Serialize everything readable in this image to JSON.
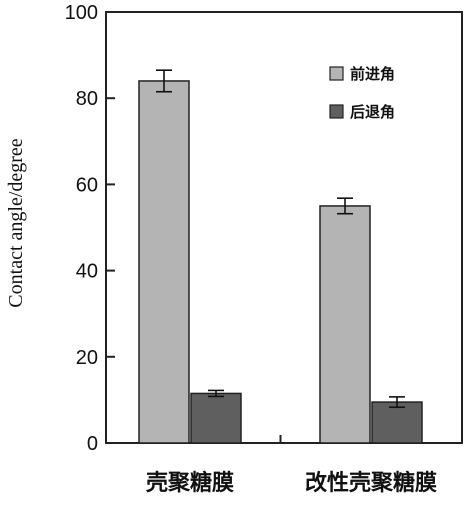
{
  "chart_data": {
    "type": "bar",
    "title": "",
    "xlabel": "",
    "ylabel": "Contact angle/degree",
    "ylim": [
      0,
      100
    ],
    "yticks": [
      0,
      20,
      40,
      60,
      80,
      100
    ],
    "categories": [
      "壳聚糖膜",
      "改性壳聚糖膜"
    ],
    "series": [
      {
        "name": "前进角",
        "color": "#b4b4b4",
        "values": [
          84,
          55
        ],
        "errors": [
          2.5,
          1.8
        ]
      },
      {
        "name": "后退角",
        "color": "#5f5f5f",
        "values": [
          11.5,
          9.5
        ],
        "errors": [
          0.7,
          1.2
        ]
      }
    ],
    "grid": false,
    "legend_position": "top-right"
  }
}
